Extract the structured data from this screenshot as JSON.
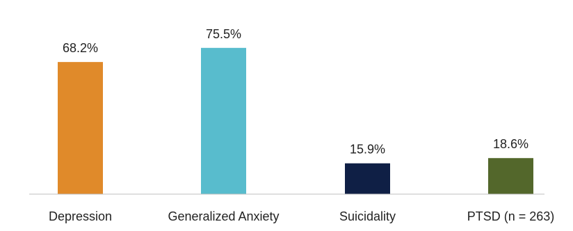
{
  "chart_data": {
    "type": "bar",
    "categories": [
      "Depression",
      "Generalized Anxiety",
      "Suicidality",
      "PTSD (n = 263)"
    ],
    "values": [
      68.2,
      75.5,
      15.9,
      18.6
    ],
    "value_labels": [
      "68.2%",
      "75.5%",
      "15.9%",
      "18.6%"
    ],
    "colors": [
      "#e08a2a",
      "#58bccd",
      "#0f1f45",
      "#53672b"
    ],
    "title": "",
    "xlabel": "",
    "ylabel": "",
    "ylim": [
      0,
      100
    ],
    "grid": false,
    "legend": "none"
  }
}
